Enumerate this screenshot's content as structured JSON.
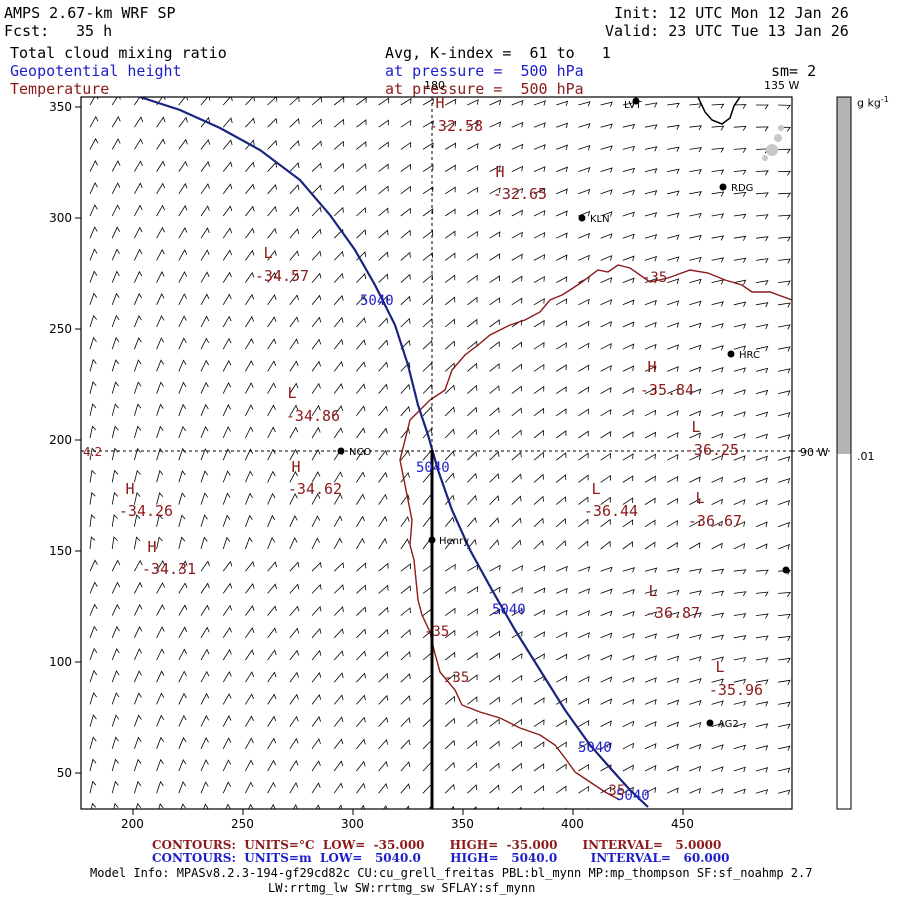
{
  "header": {
    "model": "AMPS 2.67-km WRF SP",
    "fcst_label": "Fcst:",
    "fcst_value": "35 h",
    "init": "Init: 12 UTC Mon 12 Jan 26",
    "valid": "Valid: 23 UTC Tue 13 Jan 26",
    "field_cloud": "Total cloud mixing ratio",
    "field_geo": "Geopotential height",
    "field_temp": "Temperature",
    "avg_text": "Avg, K-index =  61 to   1",
    "pressure_geo": "at pressure =  500 hPa",
    "pressure_temp": "at pressure =  500 hPa",
    "sm": "sm= 2"
  },
  "map": {
    "lon_top": "180",
    "lon_topright": "135 W",
    "lon_right": "90 W",
    "left_mark": "4.2",
    "x_ticks": [
      "200",
      "250",
      "300",
      "350",
      "400",
      "450"
    ],
    "y_ticks": [
      "350",
      "300",
      "250",
      "200",
      "150",
      "100",
      "50"
    ],
    "stations": [
      {
        "name": "RDG"
      },
      {
        "name": "KLN"
      },
      {
        "name": "HRC"
      },
      {
        "name": "NCO"
      },
      {
        "name": "Henry"
      },
      {
        "name": "AG2"
      },
      {
        "name": "LVT"
      }
    ],
    "geo_contour_labels": [
      "5040",
      "5040",
      "5040",
      "5040",
      "5040"
    ],
    "temp_contour_labels": [
      "-35",
      "-35",
      "-35",
      "-35"
    ],
    "centers": [
      {
        "letter": "H",
        "value": "-32.58"
      },
      {
        "letter": "H",
        "value": "-32.65"
      },
      {
        "letter": "L",
        "value": "-34.57"
      },
      {
        "letter": "L",
        "value": "-34.86"
      },
      {
        "letter": "H",
        "value": "-34.62"
      },
      {
        "letter": "H",
        "value": "-34.26"
      },
      {
        "letter": "H",
        "value": "-34.31"
      },
      {
        "letter": "H",
        "value": "-35.84"
      },
      {
        "letter": "L",
        "value": "-36.25"
      },
      {
        "letter": "L",
        "value": "-36.44"
      },
      {
        "letter": "L",
        "value": "-36.67"
      },
      {
        "letter": "L",
        "value": "-36.87"
      },
      {
        "letter": "L",
        "value": "-35.96"
      }
    ]
  },
  "colorbar": {
    "unit": "g kg",
    "unit_exp": "-1",
    "tick": ".01"
  },
  "footer": {
    "temp_line": "CONTOURS:  UNITS=°C  LOW=  -35.000      HIGH=  -35.000      INTERVAL=   5.0000",
    "geo_line": "CONTOURS:  UNITS=m  LOW=   5040.0       HIGH=   5040.0        INTERVAL=   60.000",
    "model_info": "Model Info: MPASv8.2.3-194-gf29cd82c CU:cu_grell_freitas PBL:bl_mynn MP:mp_thompson SF:sf_noahmp 2.7",
    "model_info2": "LW:rrtmg_lw SW:rrtmg_sw SFLAY:sf_mynn"
  },
  "colors": {
    "geopotential": "#1a237e",
    "temperature": "#8b1a1a",
    "colorbar_fill": "#b4b4b4"
  }
}
